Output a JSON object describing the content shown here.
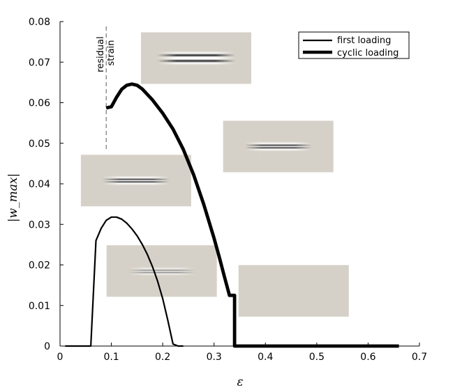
{
  "chart_data": {
    "type": "line",
    "xlabel": "ε",
    "ylabel": "|w_max|",
    "xlim": [
      0,
      0.7
    ],
    "ylim": [
      0,
      0.08
    ],
    "xticks": [
      0,
      0.1,
      0.2,
      0.3,
      0.4,
      0.5,
      0.6,
      0.7
    ],
    "xtick_labels": [
      "0",
      "0.1",
      "0.2",
      "0.3",
      "0.4",
      "0.5",
      "0.6",
      "0.7"
    ],
    "yticks": [
      0,
      0.01,
      0.02,
      0.03,
      0.04,
      0.05,
      0.06,
      0.07,
      0.08
    ],
    "ytick_labels": [
      "0",
      "0.01",
      "0.02",
      "0.03",
      "0.04",
      "0.05",
      "0.06",
      "0.07",
      "0.08"
    ],
    "grid": false,
    "legend_position": "top-right",
    "series": [
      {
        "name": "first loading",
        "color": "#000000",
        "x": [
          0.01,
          0.06,
          0.07,
          0.08,
          0.09,
          0.1,
          0.11,
          0.12,
          0.13,
          0.14,
          0.15,
          0.16,
          0.17,
          0.18,
          0.19,
          0.2,
          0.21,
          0.22,
          0.23,
          0.24
        ],
        "y": [
          0,
          0,
          0.026,
          0.029,
          0.031,
          0.0318,
          0.0318,
          0.0313,
          0.0303,
          0.0289,
          0.0272,
          0.0251,
          0.0226,
          0.0196,
          0.016,
          0.0117,
          0.0063,
          0.0005,
          0,
          0
        ]
      },
      {
        "name": "cyclic loading",
        "color": "#000000",
        "x": [
          0.09,
          0.1,
          0.11,
          0.12,
          0.13,
          0.14,
          0.15,
          0.16,
          0.18,
          0.2,
          0.22,
          0.24,
          0.26,
          0.28,
          0.3,
          0.31,
          0.32,
          0.33,
          0.34,
          0.34,
          0.34,
          0.36,
          0.4,
          0.5,
          0.6,
          0.66
        ],
        "y": [
          0.0587,
          0.059,
          0.0613,
          0.0633,
          0.0643,
          0.0646,
          0.0643,
          0.0634,
          0.0607,
          0.0574,
          0.0535,
          0.0485,
          0.0423,
          0.0349,
          0.0266,
          0.022,
          0.0172,
          0.0125,
          0.0125,
          0.0125,
          0,
          0,
          0,
          0,
          0,
          0
        ]
      }
    ],
    "annotations": {
      "residual_strain_x": 0.09,
      "residual_strain_lines": [
        "residual",
        "strain"
      ]
    },
    "inset_images": [
      {
        "id": "inset-top",
        "x_center": 0.265,
        "y_center": 0.071,
        "stripe": "strong"
      },
      {
        "id": "inset-left",
        "x_center": 0.148,
        "y_center": 0.0408,
        "stripe": "medium"
      },
      {
        "id": "inset-right",
        "x_center": 0.425,
        "y_center": 0.0492,
        "stripe": "medium"
      },
      {
        "id": "inset-lower",
        "x_center": 0.198,
        "y_center": 0.0185,
        "stripe": "faint"
      },
      {
        "id": "inset-flat",
        "x_center": 0.455,
        "y_center": 0.0136,
        "stripe": "none"
      }
    ]
  }
}
